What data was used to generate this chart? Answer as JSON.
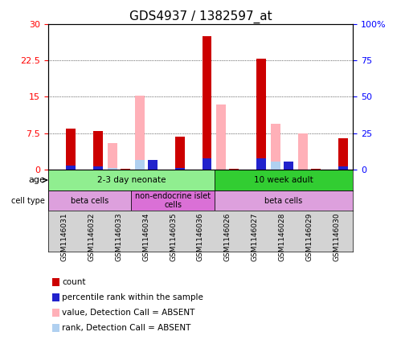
{
  "title": "GDS4937 / 1382597_at",
  "samples": [
    "GSM1146031",
    "GSM1146032",
    "GSM1146033",
    "GSM1146034",
    "GSM1146035",
    "GSM1146036",
    "GSM1146026",
    "GSM1146027",
    "GSM1146028",
    "GSM1146029",
    "GSM1146030"
  ],
  "red_count": [
    8.5,
    8.0,
    0.3,
    0.3,
    6.8,
    27.5,
    0.3,
    22.8,
    0.3,
    0.3,
    6.5
  ],
  "blue_rank": [
    2.8,
    2.5,
    0.0,
    6.8,
    1.5,
    7.8,
    0.0,
    7.8,
    5.5,
    0.0,
    2.2
  ],
  "pink_value": [
    0.0,
    0.0,
    5.5,
    15.2,
    0.0,
    0.0,
    13.5,
    0.0,
    9.5,
    7.5,
    0.0
  ],
  "lightblue_rank": [
    0.0,
    0.0,
    1.5,
    6.8,
    0.0,
    0.0,
    0.0,
    0.0,
    5.5,
    0.0,
    0.0
  ],
  "ylim_left": [
    0,
    30
  ],
  "ylim_right": [
    0,
    100
  ],
  "yticks_left": [
    0,
    7.5,
    15,
    22.5,
    30
  ],
  "yticks_right": [
    0,
    25,
    50,
    75,
    100
  ],
  "ytick_labels_left": [
    "0",
    "7.5",
    "15",
    "22.5",
    "30"
  ],
  "ytick_labels_right": [
    "0",
    "25",
    "50",
    "75",
    "100%"
  ],
  "age_groups": [
    {
      "label": "2-3 day neonate",
      "start": 0,
      "end": 6,
      "color": "#90ee90"
    },
    {
      "label": "10 week adult",
      "start": 6,
      "end": 11,
      "color": "#32cd32"
    }
  ],
  "cell_type_groups": [
    {
      "label": "beta cells",
      "start": 0,
      "end": 3,
      "color": "#dda0dd"
    },
    {
      "label": "non-endocrine islet\ncells",
      "start": 3,
      "end": 6,
      "color": "#da70d6"
    },
    {
      "label": "beta cells",
      "start": 6,
      "end": 11,
      "color": "#dda0dd"
    }
  ],
  "legend_items": [
    {
      "label": "count",
      "color": "#cc0000",
      "marker": "s"
    },
    {
      "label": "percentile rank within the sample",
      "color": "#0000cc",
      "marker": "s"
    },
    {
      "label": "value, Detection Call = ABSENT",
      "color": "#ffb6c1",
      "marker": "s"
    },
    {
      "label": "rank, Detection Call = ABSENT",
      "color": "#add8e6",
      "marker": "s"
    }
  ],
  "bar_width": 0.35,
  "bar_gap": 0.12,
  "title_fontsize": 11,
  "tick_fontsize": 8,
  "label_fontsize": 8,
  "bg_color": "#e8e8e8",
  "plot_bg": "#ffffff"
}
